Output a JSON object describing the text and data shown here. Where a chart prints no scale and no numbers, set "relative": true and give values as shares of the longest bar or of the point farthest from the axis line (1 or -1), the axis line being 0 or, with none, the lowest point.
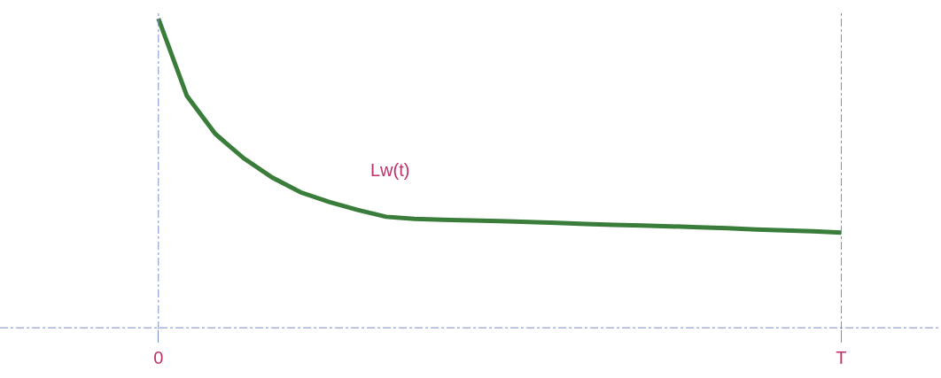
{
  "chart_data": {
    "type": "line",
    "relative": true,
    "categories": [
      "0",
      null,
      null,
      null,
      null,
      null,
      null,
      null,
      null,
      null,
      null,
      null,
      null,
      null,
      null,
      null,
      null,
      null,
      null,
      null,
      null,
      null,
      null,
      null,
      "T"
    ],
    "series": [
      {
        "name": "Lw(t)",
        "color": "#3a7d3a",
        "values": [
          1,
          0.75,
          0.627,
          0.548,
          0.486,
          0.438,
          0.407,
          0.381,
          0.359,
          0.352,
          0.349,
          0.347,
          0.345,
          0.342,
          0.339,
          0.336,
          0.333,
          0.331,
          0.328,
          0.325,
          0.322,
          0.318,
          0.315,
          0.312,
          0.308
        ]
      }
    ],
    "legend": false,
    "marker": "none",
    "line_style": "solid"
  }
}
